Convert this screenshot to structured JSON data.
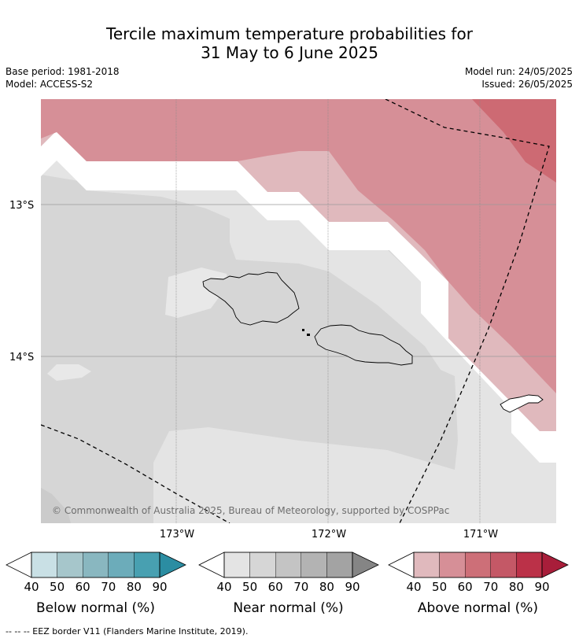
{
  "title": {
    "line1": "Tercile maximum temperature probabilities for",
    "line2": "31 May to 6 June 2025"
  },
  "meta": {
    "base_period": "Base period: 1981-2018",
    "model": "Model: ACCESS-S2",
    "model_run": "Model run: 24/05/2025",
    "issued": "Issued: 26/05/2025"
  },
  "map": {
    "lat_labels": [
      "13°S",
      "14°S"
    ],
    "lon_labels": [
      "173°W",
      "172°W",
      "171°W"
    ],
    "copyright": "© Commonwealth of Australia 2025, Bureau of Meteorology, supported by COSPPac",
    "colors": {
      "near_light": "#e4e4e4",
      "near_mid": "#d6d6d6",
      "above_light": "#e0b9bd",
      "above_mid": "#d68f97",
      "above_strong": "#cd6a73",
      "gap": "#ffffff"
    }
  },
  "colorbars": [
    {
      "name": "below",
      "title": "Below normal (%)",
      "ticks": [
        "40",
        "50",
        "60",
        "70",
        "80",
        "90"
      ],
      "colors": [
        "#ffffff",
        "#c9e0e5",
        "#a6c6cb",
        "#89b7c0",
        "#6cacba",
        "#48a0b1",
        "#2b8da2"
      ]
    },
    {
      "name": "near",
      "title": "Near normal (%)",
      "ticks": [
        "40",
        "50",
        "60",
        "70",
        "80",
        "90"
      ],
      "colors": [
        "#ffffff",
        "#e4e4e4",
        "#d6d6d6",
        "#c4c4c4",
        "#b3b3b3",
        "#a3a3a3",
        "#858585"
      ]
    },
    {
      "name": "above",
      "title": "Above normal (%)",
      "ticks": [
        "40",
        "50",
        "60",
        "70",
        "80",
        "90"
      ],
      "colors": [
        "#ffffff",
        "#e0b9bd",
        "#d68f97",
        "#cd6f78",
        "#c45866",
        "#bb3148",
        "#a81e3a"
      ]
    }
  ],
  "footer": "--  --  -- EEZ border V11 (Flanders Marine Institute, 2019)."
}
